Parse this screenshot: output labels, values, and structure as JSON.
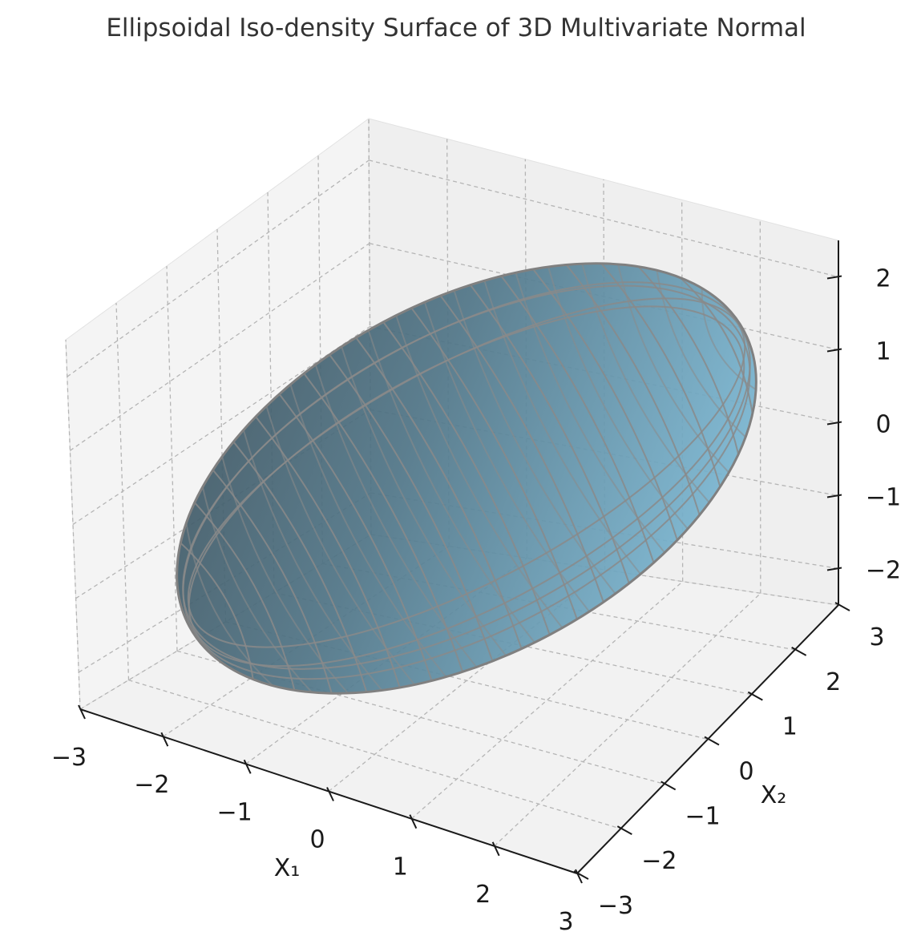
{
  "chart_data": {
    "type": "surface3d",
    "title": "Ellipsoidal Iso-density Surface of 3D Multivariate Normal",
    "xlabel": "X₁",
    "ylabel": "X₂",
    "zlabel": "",
    "xlim": [
      -3,
      3
    ],
    "ylim": [
      -3,
      3
    ],
    "zlim": [
      -2.5,
      2.5
    ],
    "x_ticks": [
      "−3",
      "−2",
      "−1",
      "0",
      "1",
      "2",
      "3"
    ],
    "y_ticks": [
      "−3",
      "−2",
      "−1",
      "0",
      "1",
      "2",
      "3"
    ],
    "z_ticks": [
      "−2",
      "−1",
      "0",
      "1",
      "2"
    ],
    "grid": true,
    "surface": {
      "shape": "ellipsoid",
      "center": [
        0,
        0,
        0
      ],
      "face_color": "#6aaecd",
      "edge_color": "#808080",
      "alpha": 0.6
    }
  }
}
